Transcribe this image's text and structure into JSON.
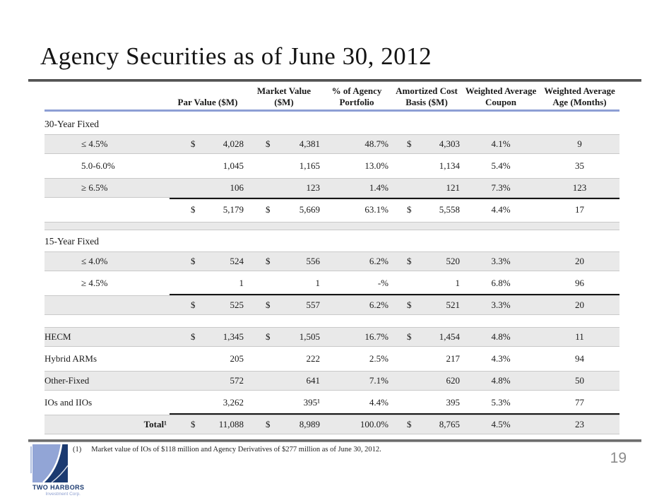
{
  "slide": {
    "title": "Agency Securities as of June 30, 2012",
    "page_number": "19",
    "footnote": {
      "marker": "(1)",
      "text": "Market value of IOs of $118 million and Agency Derivatives of $277 million as of June 30, 2012."
    },
    "logo": {
      "name": "TWO HARBORS",
      "subtitle": "Investment Corp."
    }
  },
  "colors": {
    "accent_blue_rule": "#8d9fd4",
    "row_shade": "#e9e9e9",
    "hairline": "#c9c9c9",
    "logo_light_blue": "#92a5d6",
    "logo_navy": "#1b3a70",
    "page_number_gray": "#8c8c8c"
  },
  "table": {
    "header": [
      {
        "l1": "",
        "l2": ""
      },
      {
        "l1": "",
        "l2": "Par Value ($M)"
      },
      {
        "l1": "Market Value",
        "l2": "($M)"
      },
      {
        "l1": "% of Agency",
        "l2": "Portfolio"
      },
      {
        "l1": "Amortized Cost",
        "l2": "Basis ($M)"
      },
      {
        "l1": "Weighted Average",
        "l2": "Coupon"
      },
      {
        "l1": "Weighted Average",
        "l2": "Age (Months)"
      }
    ],
    "rows": [
      {
        "type": "section",
        "label": "30-Year Fixed"
      },
      {
        "type": "data",
        "shaded": true,
        "indent": true,
        "label": "≤ 4.5%",
        "cells": [
          "$",
          "4,028",
          "$",
          "4,381",
          "48.7%",
          "$",
          "4,303",
          "4.1%",
          "9"
        ]
      },
      {
        "type": "data",
        "shaded": false,
        "indent": true,
        "label": "5.0-6.0%",
        "cells": [
          "",
          "1,045",
          "",
          "1,165",
          "13.0%",
          "",
          "1,134",
          "5.4%",
          "35"
        ]
      },
      {
        "type": "data",
        "shaded": true,
        "indent": true,
        "label": "≥ 6.5%",
        "cells": [
          "",
          "106",
          "",
          "123",
          "1.4%",
          "",
          "121",
          "7.3%",
          "123"
        ]
      },
      {
        "type": "subtotal",
        "shaded": false,
        "label": "",
        "cells": [
          "$",
          "5,179",
          "$",
          "5,669",
          "63.1%",
          "$",
          "5,558",
          "4.4%",
          "17"
        ]
      },
      {
        "type": "spacer-shaded"
      },
      {
        "type": "section",
        "label": "15-Year Fixed"
      },
      {
        "type": "data",
        "shaded": true,
        "indent": true,
        "label": "≤ 4.0%",
        "cells": [
          "$",
          "524",
          "$",
          "556",
          "6.2%",
          "$",
          "520",
          "3.3%",
          "20"
        ]
      },
      {
        "type": "data",
        "shaded": false,
        "indent": true,
        "label": "≥ 4.5%",
        "cells": [
          "",
          "1",
          "",
          "1",
          "-%",
          "",
          "1",
          "6.8%",
          "96"
        ]
      },
      {
        "type": "subtotal",
        "shaded": true,
        "label": "",
        "cells": [
          "$",
          "525",
          "$",
          "557",
          "6.2%",
          "$",
          "521",
          "3.3%",
          "20"
        ]
      },
      {
        "type": "spacer-white"
      },
      {
        "type": "data",
        "shaded": true,
        "indent": false,
        "label": "HECM",
        "cells": [
          "$",
          "1,345",
          "$",
          "1,505",
          "16.7%",
          "$",
          "1,454",
          "4.8%",
          "11"
        ]
      },
      {
        "type": "data",
        "shaded": false,
        "indent": false,
        "label": "Hybrid ARMs",
        "cells": [
          "",
          "205",
          "",
          "222",
          "2.5%",
          "",
          "217",
          "4.3%",
          "94"
        ]
      },
      {
        "type": "data",
        "shaded": true,
        "indent": false,
        "label": "Other-Fixed",
        "cells": [
          "",
          "572",
          "",
          "641",
          "7.1%",
          "",
          "620",
          "4.8%",
          "50"
        ]
      },
      {
        "type": "data",
        "shaded": false,
        "indent": false,
        "label": "IOs and IIOs",
        "cells": [
          "",
          "3,262",
          "",
          "395¹",
          "4.4%",
          "",
          "395",
          "5.3%",
          "77"
        ]
      },
      {
        "type": "total",
        "shaded": true,
        "label": "Total¹",
        "cells": [
          "$",
          "11,088",
          "$",
          "8,989",
          "100.0%",
          "$",
          "8,765",
          "4.5%",
          "23"
        ]
      }
    ]
  }
}
